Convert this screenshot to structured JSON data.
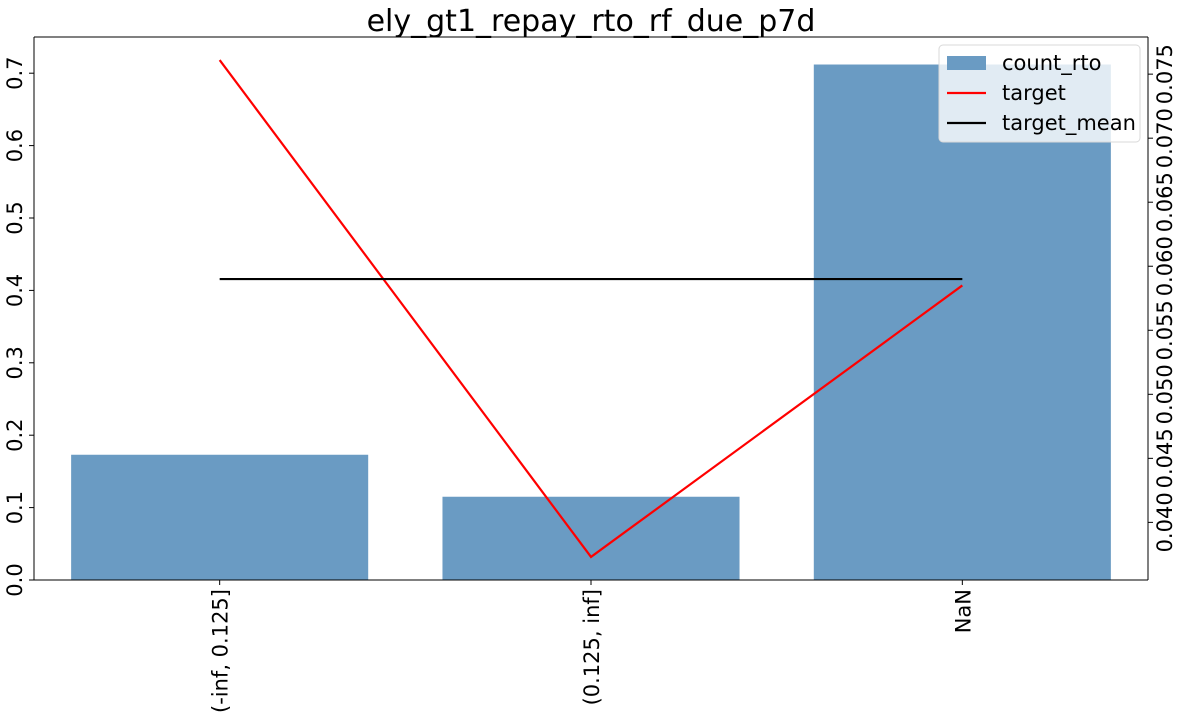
{
  "chart_data": {
    "type": "bar",
    "title": "ely_gt1_repay_rto_rf_due_p7d",
    "categories": [
      "(-inf, 0.125]",
      "(0.125, inf]",
      "NaN"
    ],
    "series": [
      {
        "name": "count_rto",
        "type": "bar",
        "axis": "left",
        "color": "#6a9bc3",
        "values": [
          0.173,
          0.115,
          0.712
        ]
      },
      {
        "name": "target",
        "type": "line",
        "axis": "right",
        "color": "#ff0000",
        "values": [
          0.0761,
          0.0373,
          0.0585
        ]
      },
      {
        "name": "target_mean",
        "type": "line",
        "axis": "right",
        "color": "#000000",
        "values": [
          0.059,
          0.059,
          0.059
        ]
      }
    ],
    "left_axis": {
      "ylim": [
        0,
        0.75
      ],
      "ticks": [
        0.0,
        0.1,
        0.2,
        0.3,
        0.4,
        0.5,
        0.6,
        0.7
      ],
      "tick_labels": [
        "0.0",
        "0.1",
        "0.2",
        "0.3",
        "0.4",
        "0.5",
        "0.6",
        "0.7"
      ]
    },
    "right_axis": {
      "ylim": [
        0.0355,
        0.0779
      ],
      "ticks": [
        0.04,
        0.045,
        0.05,
        0.055,
        0.06,
        0.065,
        0.07,
        0.075
      ],
      "tick_labels": [
        "0.040",
        "0.045",
        "0.050",
        "0.055",
        "0.060",
        "0.065",
        "0.070",
        "0.075"
      ]
    },
    "xlabel": "",
    "ylabel": "",
    "grid": false,
    "legend_position": "top-right"
  }
}
